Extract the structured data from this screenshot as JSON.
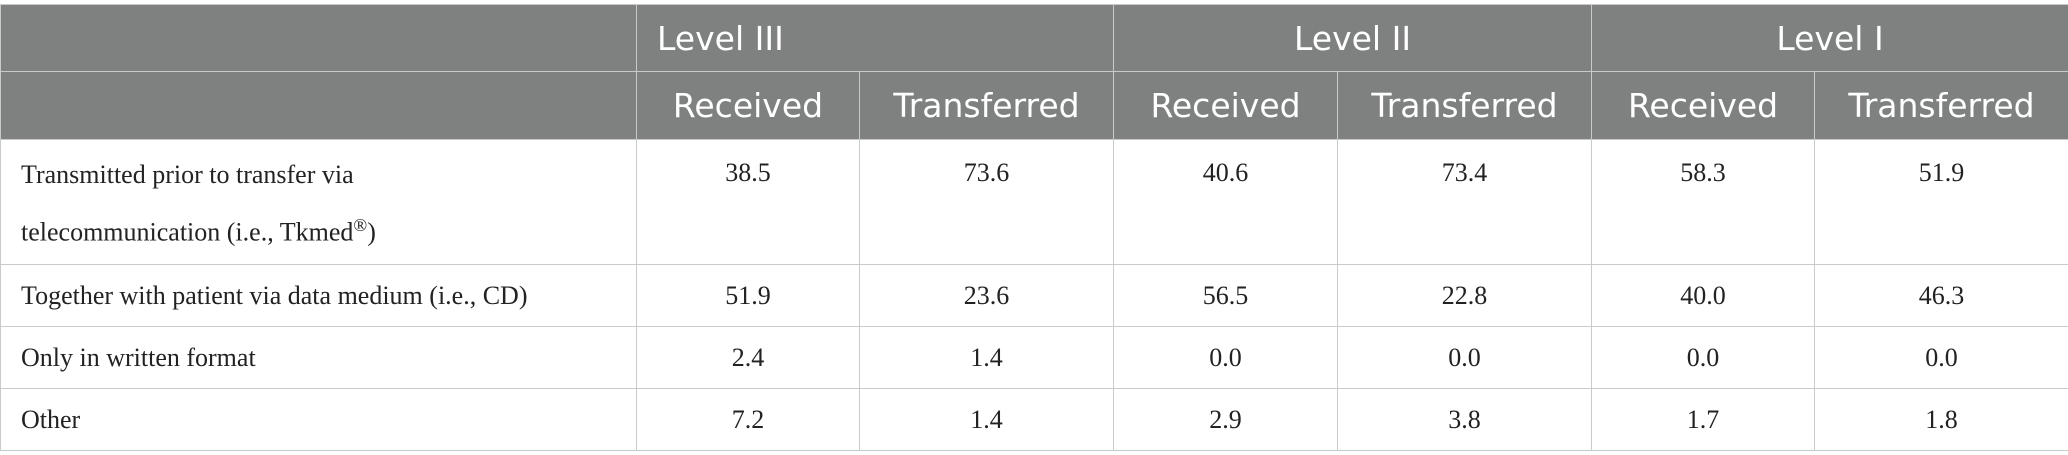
{
  "header": {
    "levels": [
      "Level III",
      "Level II",
      "Level I"
    ],
    "subcolumns": [
      "Received",
      "Transferred",
      "Received",
      "Transferred",
      "Received",
      "Transferred"
    ]
  },
  "rows": [
    {
      "label": "Transmitted prior to transfer via telecommunication (i.e., Tkmed®)",
      "label_line1": "Transmitted prior to transfer via",
      "label_line2": "telecommunication (i.e., Tkmed",
      "label_mark": "®",
      "label_close": ")",
      "values": [
        "38.5",
        "73.6",
        "40.6",
        "73.4",
        "58.3",
        "51.9"
      ]
    },
    {
      "label": "Together with patient via data medium (i.e., CD)",
      "values": [
        "51.9",
        "23.6",
        "56.5",
        "22.8",
        "40.0",
        "46.3"
      ]
    },
    {
      "label": "Only in written format",
      "values": [
        "2.4",
        "1.4",
        "0.0",
        "0.0",
        "0.0",
        "0.0"
      ]
    },
    {
      "label": "Other",
      "values": [
        "7.2",
        "1.4",
        "2.9",
        "3.8",
        "1.7",
        "1.8"
      ]
    }
  ]
}
